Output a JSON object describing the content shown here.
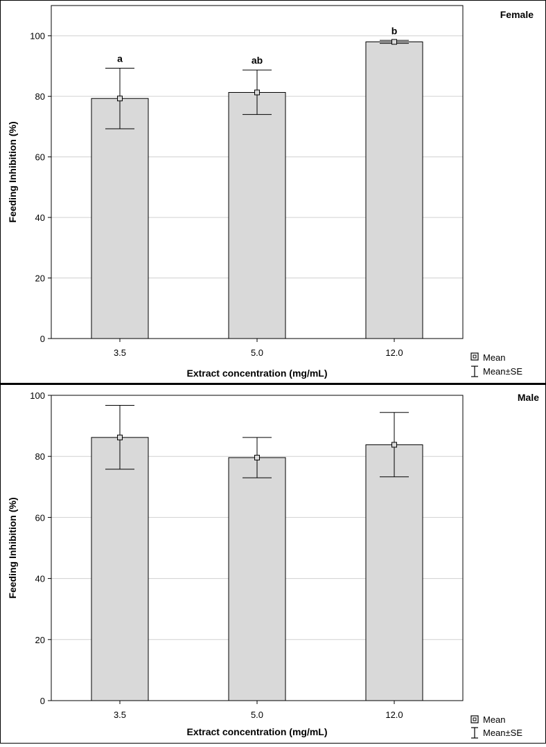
{
  "chart_data": [
    {
      "type": "bar",
      "title": "Female",
      "xlabel": "Extract concentration (mg/mL)",
      "ylabel": "Feeding Inhibition (%)",
      "categories": [
        "3.5",
        "5.0",
        "12.0"
      ],
      "series": [
        {
          "values": [
            79.3,
            81.3,
            98.0
          ],
          "se_low": [
            69.3,
            74.0,
            97.5
          ],
          "se_high": [
            89.3,
            88.7,
            98.5
          ],
          "significance": [
            "a",
            "ab",
            "b"
          ]
        }
      ],
      "ylim": [
        0,
        110
      ],
      "yticks": [
        0,
        20,
        40,
        60,
        80,
        100
      ],
      "grid": true,
      "bar_color": "#d9d9d9",
      "legend": {
        "placement": "bottom-right",
        "items": [
          "Mean",
          "Mean±SE"
        ]
      }
    },
    {
      "type": "bar",
      "title": "Male",
      "xlabel": "Extract concentration (mg/mL)",
      "ylabel": "Feeding Inhibition (%)",
      "categories": [
        "3.5",
        "5.0",
        "12.0"
      ],
      "series": [
        {
          "values": [
            86.2,
            79.6,
            83.8
          ],
          "se_low": [
            75.8,
            73.0,
            73.3
          ],
          "se_high": [
            96.7,
            86.2,
            94.4
          ]
        }
      ],
      "ylim": [
        0,
        100
      ],
      "yticks": [
        0,
        20,
        40,
        60,
        80,
        100
      ],
      "grid": true,
      "bar_color": "#d9d9d9",
      "legend": {
        "placement": "bottom-right",
        "items": [
          "Mean",
          "Mean±SE"
        ]
      }
    }
  ]
}
